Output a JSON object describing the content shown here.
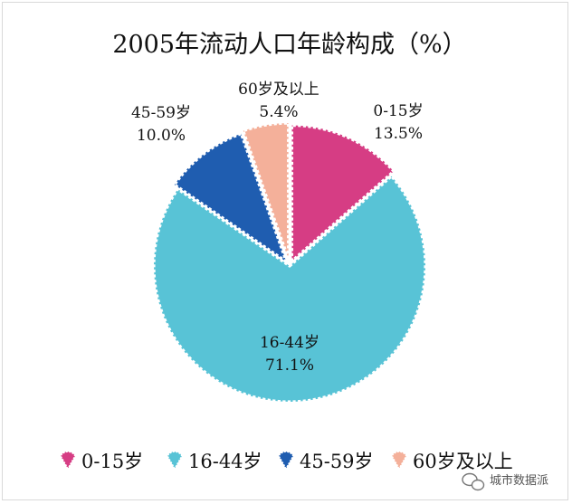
{
  "chart_data": {
    "type": "pie",
    "title": "2005年流动人口年龄构成（%）",
    "categories": [
      "0-15岁",
      "16-44岁",
      "45-59岁",
      "60岁及以上"
    ],
    "values": [
      13.5,
      71.1,
      10.0,
      5.4
    ],
    "value_labels": [
      "13.5%",
      "71.1%",
      "10.0%",
      "5.4%"
    ],
    "colors": [
      "#d63d84",
      "#58c3d6",
      "#1f5db0",
      "#f4b09a"
    ],
    "legend": "bottom",
    "start_angle_deg": 0,
    "direction": "clockwise"
  },
  "watermark": {
    "icon": "wechat-icon",
    "text": "城市数据派"
  }
}
